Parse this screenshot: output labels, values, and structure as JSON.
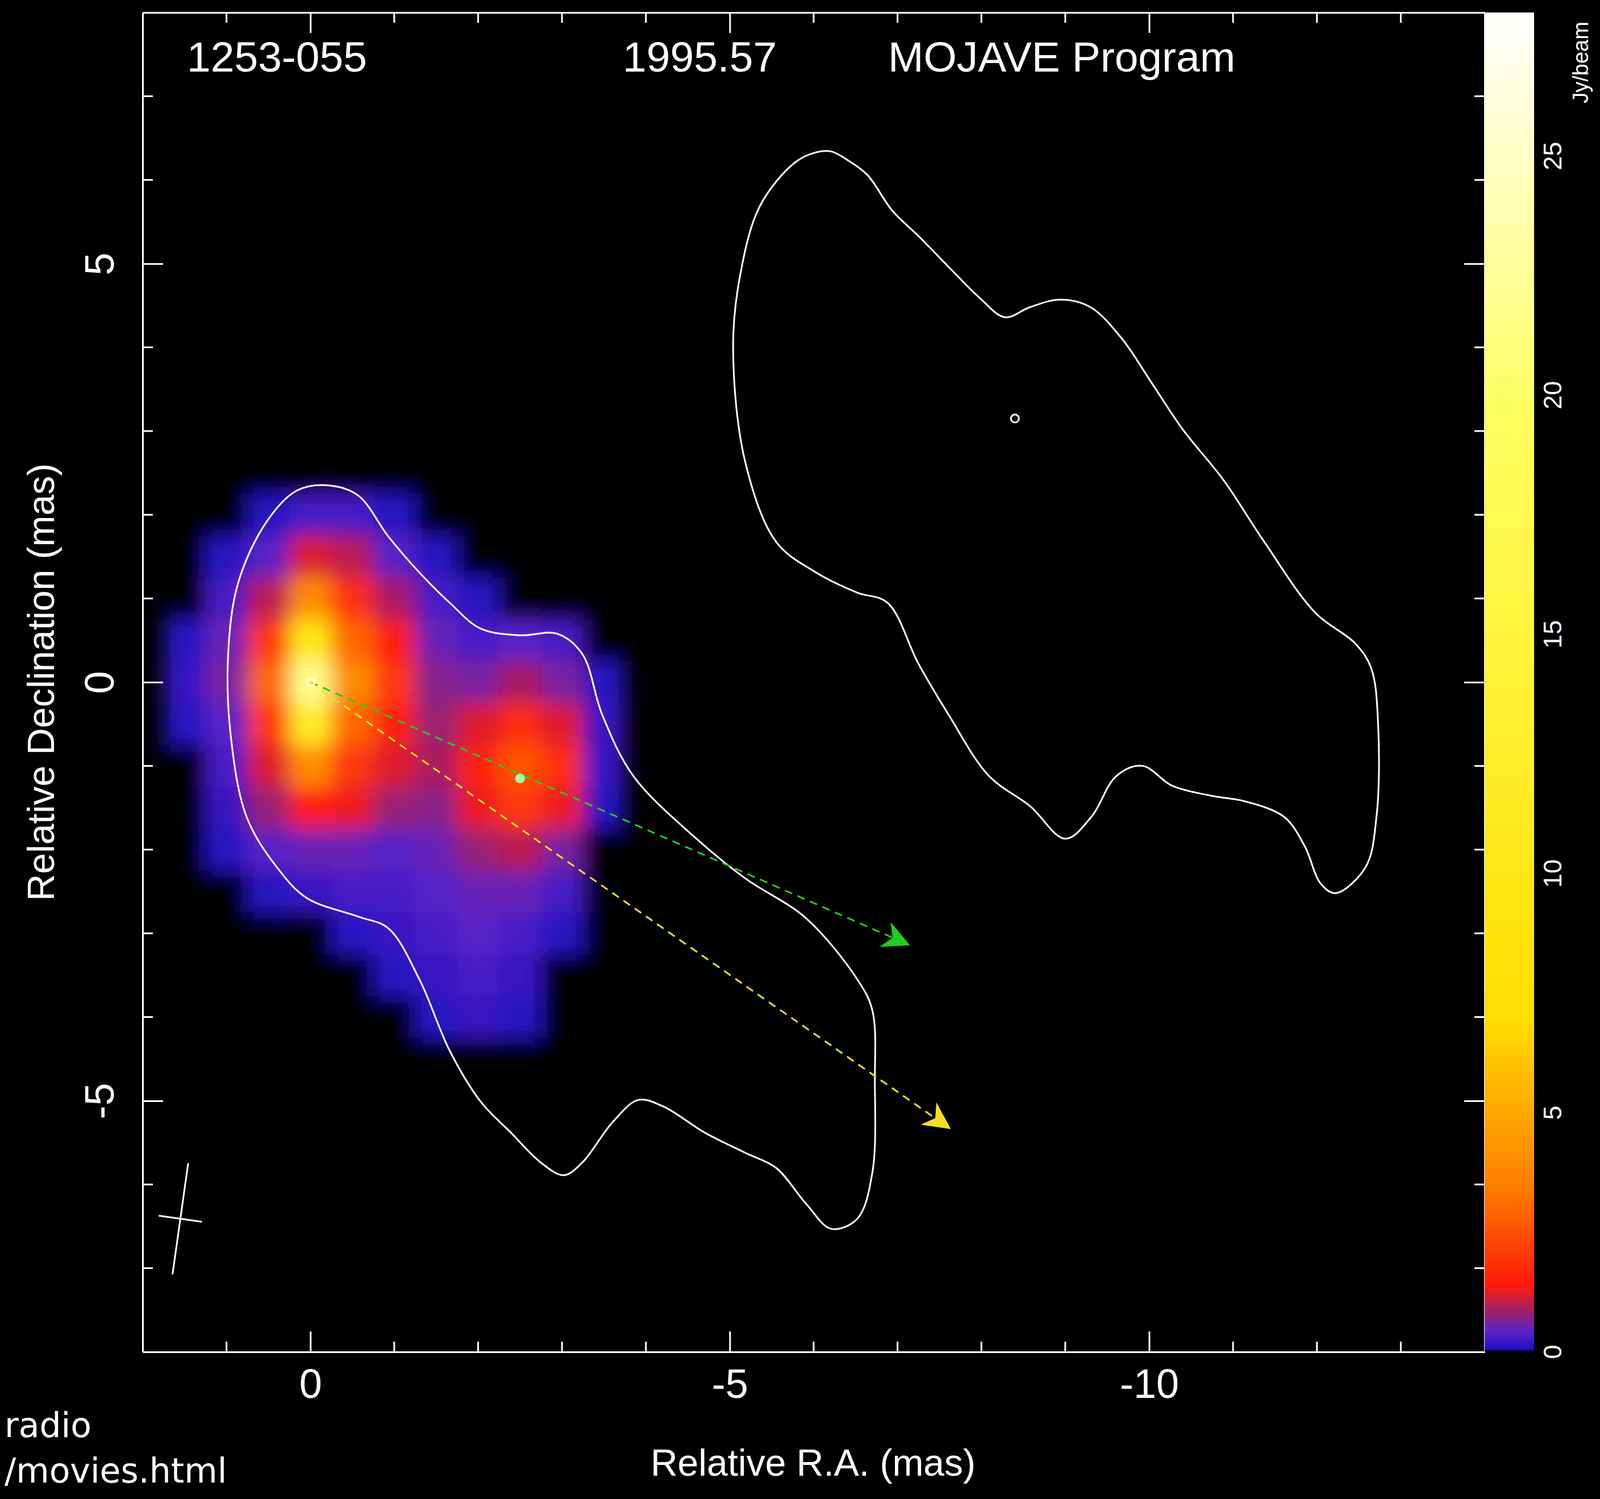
{
  "chart_data": {
    "type": "heatmap",
    "title": "1253-055",
    "subtitle": "1995.57",
    "annotations": [
      "MOJAVE Program",
      "radio",
      "/movies.html"
    ],
    "x_label": "Relative R.A. (mas)",
    "y_label": "Relative Declination (mas)",
    "xlim": [
      2,
      -14
    ],
    "ylim": [
      -8,
      8
    ],
    "xticks": [
      0,
      -5,
      -10
    ],
    "yticks": [
      -5,
      0,
      5
    ],
    "x_minor_ticks": [
      1,
      -1,
      -2,
      -3,
      -4,
      -6,
      -7,
      -8,
      -9,
      -11,
      -12,
      -13
    ],
    "y_minor_ticks": [
      7,
      6,
      4,
      3,
      2,
      1,
      -1,
      -2,
      -3,
      -4,
      -6,
      -7
    ],
    "colorbar": {
      "range": [
        0,
        28
      ],
      "ticks": [
        0,
        5,
        10,
        15,
        20,
        25
      ],
      "label": "Jy/beam"
    },
    "cells": {
      "x": [
        1.5,
        1,
        0.5,
        0,
        -0.5,
        -1,
        -1.5,
        -2,
        -2.5,
        -3,
        -3.5
      ],
      "y": [
        2.5,
        2,
        1.5,
        1,
        0.5,
        0,
        -0.5,
        -1,
        -1.5,
        -2,
        -2.5,
        -3,
        -3.5,
        -4,
        -4.5
      ],
      "values": [
        [
          0,
          0,
          0,
          0,
          0,
          0,
          0,
          0,
          0,
          0,
          0
        ],
        [
          0,
          0,
          0.1,
          0.3,
          0.3,
          0.1,
          0,
          0,
          0,
          0,
          0
        ],
        [
          0,
          0.1,
          0.4,
          1.2,
          1.0,
          0.4,
          0.1,
          0,
          0,
          0,
          0
        ],
        [
          0,
          0.3,
          1.0,
          4,
          1.8,
          0.9,
          0.3,
          0.1,
          0,
          0,
          0
        ],
        [
          0.1,
          0.5,
          2.0,
          10,
          3,
          1.5,
          0.5,
          0.3,
          0.4,
          0.3,
          0
        ],
        [
          0.2,
          0.6,
          3.0,
          22,
          4,
          2.0,
          0.7,
          0.6,
          0.9,
          0.6,
          0.1
        ],
        [
          0.1,
          0.4,
          2.0,
          12,
          3,
          1.6,
          0.8,
          1.2,
          1.8,
          1.2,
          0.2
        ],
        [
          0,
          0.3,
          1.2,
          4,
          2,
          1.2,
          0.9,
          1.6,
          2.6,
          1.8,
          0.2
        ],
        [
          0,
          0.2,
          0.8,
          1.5,
          1.3,
          0.8,
          0.7,
          1.3,
          2.0,
          1.3,
          0.1
        ],
        [
          0,
          0.1,
          0.4,
          0.5,
          0.5,
          0.4,
          0.5,
          0.8,
          1.0,
          0.6,
          0
        ],
        [
          0,
          0,
          0.1,
          0.2,
          0.3,
          0.3,
          0.4,
          0.5,
          0.5,
          0.3,
          0
        ],
        [
          0,
          0,
          0,
          0,
          0.1,
          0.2,
          0.3,
          0.4,
          0.3,
          0.1,
          0
        ],
        [
          0,
          0,
          0,
          0,
          0,
          0.1,
          0.2,
          0.3,
          0.2,
          0,
          0
        ],
        [
          0,
          0,
          0,
          0,
          0,
          0,
          0.1,
          0.2,
          0.1,
          0,
          0
        ],
        [
          0,
          0,
          0,
          0,
          0,
          0,
          0,
          0,
          0,
          0,
          0
        ]
      ]
    },
    "contours": [
      {
        "x": [
          -0.23,
          -0.57,
          -0.93,
          -1.3,
          -1.66,
          -2.03,
          -2.51,
          -2.94,
          -3.24,
          -3.48,
          -3.85,
          -4.58,
          -5.18,
          -5.91,
          -6.52,
          -6.7,
          -6.73,
          -6.7,
          -6.52,
          -6.21,
          -5.91,
          -5.55,
          -5.18,
          -4.7,
          -4.21,
          -3.91,
          -3.6,
          -3.24,
          -3.02,
          -2.75,
          -2.39,
          -2.03,
          -1.66,
          -1.3,
          -0.93,
          -0.57,
          0.04,
          0.4,
          0.76,
          0.95,
          0.98,
          0.86,
          0.52,
          0.16
        ],
        "y": [
          2.35,
          2.23,
          1.74,
          1.31,
          0.95,
          0.64,
          0.56,
          0.58,
          0.34,
          -0.39,
          -1.12,
          -1.85,
          -2.34,
          -2.82,
          -3.55,
          -3.92,
          -4.77,
          -5.86,
          -6.41,
          -6.53,
          -6.23,
          -5.8,
          -5.62,
          -5.38,
          -5.07,
          -4.99,
          -5.26,
          -5.74,
          -5.89,
          -5.74,
          -5.38,
          -5.01,
          -4.4,
          -3.55,
          -2.94,
          -2.8,
          -2.58,
          -2.21,
          -1.61,
          -0.63,
          0.34,
          1.19,
          1.92,
          2.29
        ]
      },
      {
        "x": [
          -6.21,
          -6.4,
          -6.64,
          -6.94,
          -7.25,
          -7.61,
          -7.97,
          -8.28,
          -8.58,
          -8.94,
          -9.3,
          -9.67,
          -10.04,
          -10.4,
          -10.89,
          -11.37,
          -11.98,
          -12.46,
          -12.65,
          -12.73,
          -12.71,
          -12.58,
          -12.22,
          -12.04,
          -11.86,
          -11.61,
          -11.13,
          -10.76,
          -10.28,
          -9.92,
          -9.61,
          -9.31,
          -9.0,
          -8.58,
          -8.09,
          -7.61,
          -7.25,
          -6.88,
          -6.52,
          -6.03,
          -5.55,
          -5.18,
          -5.04,
          -5.12,
          -5.36,
          -5.78,
          -6.03
        ],
        "y": [
          6.34,
          6.24,
          6.06,
          5.63,
          5.33,
          4.96,
          4.6,
          4.36,
          4.48,
          4.57,
          4.48,
          4.11,
          3.56,
          3.02,
          2.41,
          1.68,
          0.83,
          0.46,
          0.16,
          -0.51,
          -1.61,
          -2.21,
          -2.52,
          -2.4,
          -1.97,
          -1.61,
          -1.42,
          -1.36,
          -1.24,
          -1.0,
          -1.12,
          -1.61,
          -1.87,
          -1.48,
          -1.12,
          -0.39,
          0.22,
          0.95,
          1.07,
          1.31,
          1.68,
          2.65,
          3.99,
          4.84,
          5.69,
          6.21,
          6.33
        ]
      }
    ],
    "components": {
      "x": [
        0,
        -2.5,
        -8.4
      ],
      "y": [
        0,
        -1.15,
        3.15
      ],
      "colors": [
        "#ffffff",
        "#a0ffa0",
        "#ffffff"
      ]
    },
    "vectors": [
      {
        "color": "#22cc22",
        "x": [
          0,
          -7.12
        ],
        "y": [
          0,
          -3.13
        ]
      },
      {
        "color": "#f2e21e",
        "x": [
          0,
          -7.61
        ],
        "y": [
          0,
          -5.32
        ]
      }
    ],
    "beam": {
      "x": 1.55,
      "y": -6.41,
      "major": 1.34,
      "minor": 0.52,
      "pa": -8
    }
  }
}
